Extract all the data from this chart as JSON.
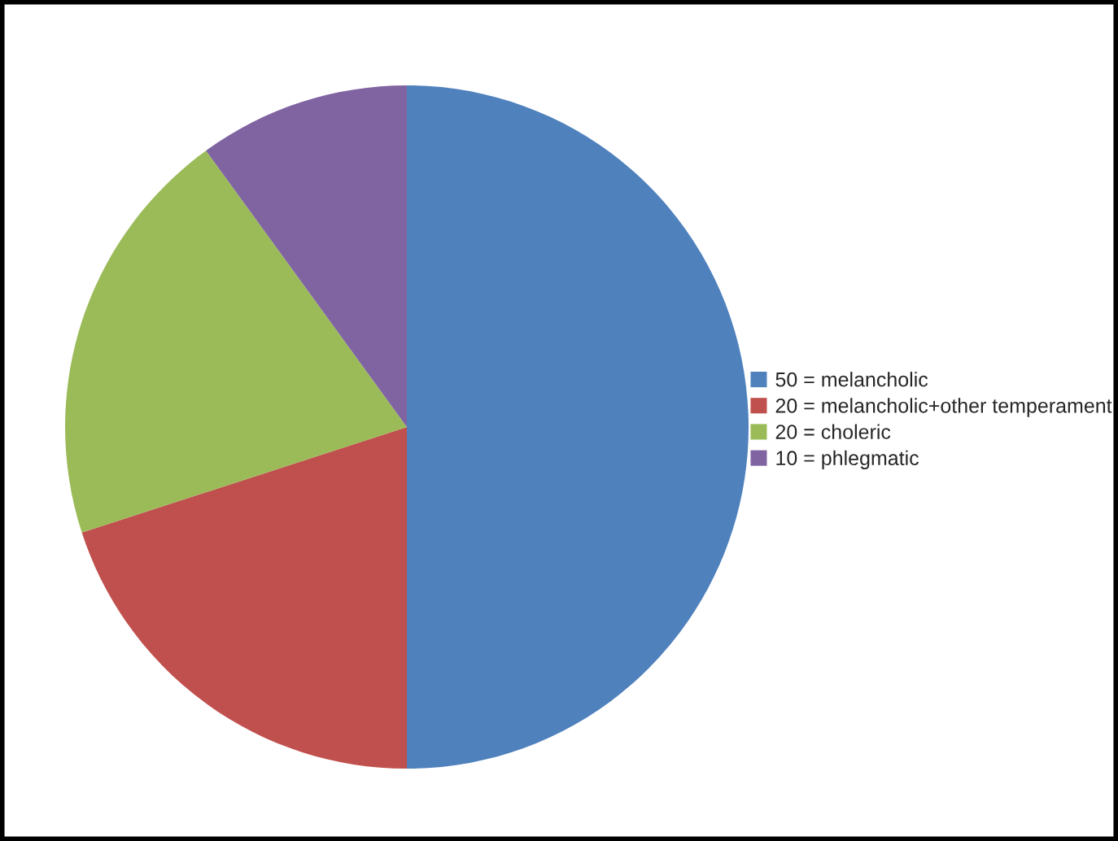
{
  "chart_data": {
    "type": "pie",
    "categories": [
      "50 = melancholic",
      "20 = melancholic+other temperament",
      "20 = choleric",
      "10 = phlegmatic"
    ],
    "values": [
      50,
      20,
      20,
      10
    ],
    "colors": [
      "#4f81bd",
      "#c0504d",
      "#9bbb59",
      "#8064a2"
    ],
    "legend": "right"
  }
}
